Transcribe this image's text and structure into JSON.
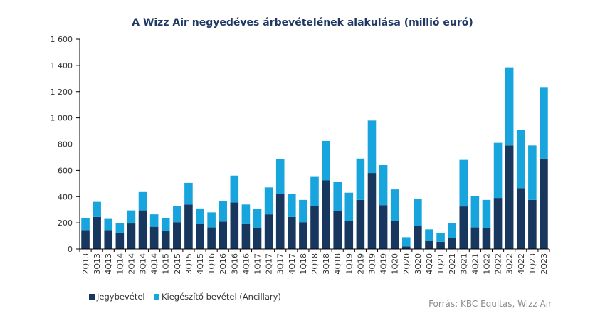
{
  "chart_data": {
    "type": "bar",
    "stacked": true,
    "title": "A Wizz Air negyedéves árbevételének alakulása (millió euró)",
    "xlabel": "",
    "ylabel": "",
    "ylim": [
      0,
      1600
    ],
    "yticks": [
      0,
      200,
      400,
      600,
      800,
      1000,
      1200,
      1400,
      1600
    ],
    "ytick_labels": [
      "0",
      "200",
      "400",
      "600",
      "800",
      "1 000",
      "1 200",
      "1 400",
      "1 600"
    ],
    "grid": false,
    "legend_position": "bottom-left",
    "categories": [
      "2Q13",
      "3Q13",
      "4Q13",
      "1Q14",
      "2Q14",
      "3Q14",
      "4Q14",
      "1Q15",
      "2Q15",
      "3Q15",
      "4Q15",
      "1Q16",
      "2Q16",
      "3Q16",
      "4Q16",
      "1Q17",
      "2Q17",
      "3Q17",
      "4Q17",
      "1Q18",
      "2Q18",
      "3Q18",
      "4Q18",
      "1Q19",
      "2Q19",
      "3Q19",
      "4Q19",
      "1Q20",
      "2Q20",
      "3Q20",
      "4Q20",
      "1Q21",
      "2Q21",
      "3Q21",
      "4Q21",
      "1Q22",
      "2Q22",
      "3Q22",
      "4Q22",
      "1Q23",
      "2Q23"
    ],
    "series": [
      {
        "name": "Jegybevétel",
        "color": "#17375e",
        "values": [
          145,
          245,
          145,
          125,
          195,
          295,
          170,
          140,
          205,
          340,
          190,
          165,
          210,
          355,
          190,
          160,
          265,
          420,
          245,
          205,
          330,
          525,
          290,
          215,
          375,
          580,
          335,
          215,
          20,
          175,
          65,
          55,
          85,
          325,
          165,
          160,
          390,
          790,
          465,
          375,
          690
        ]
      },
      {
        "name": "Kiegészítő bevétel (Ancillary)",
        "color": "#18a5de",
        "values": [
          90,
          115,
          85,
          75,
          100,
          140,
          95,
          95,
          125,
          165,
          120,
          115,
          155,
          205,
          150,
          145,
          205,
          265,
          175,
          170,
          220,
          300,
          220,
          215,
          315,
          400,
          305,
          240,
          70,
          205,
          85,
          65,
          115,
          355,
          240,
          215,
          420,
          595,
          445,
          415,
          545
        ]
      }
    ]
  },
  "source": "Forrás: KBC Equitas, Wizz Air"
}
